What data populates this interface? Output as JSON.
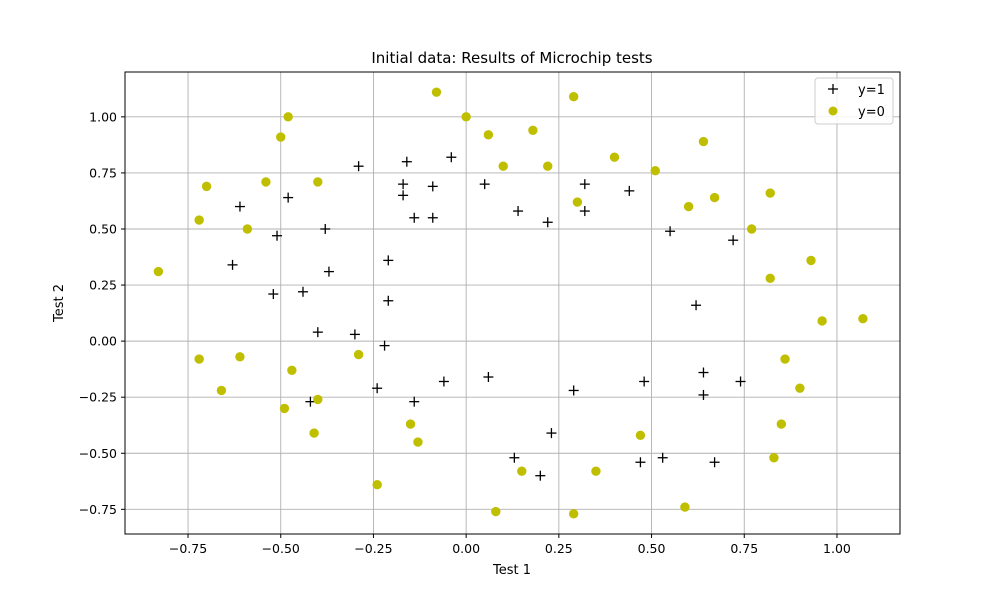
{
  "chart_data": {
    "type": "scatter",
    "title": "Initial data: Results of Microchip tests",
    "xlabel": "Test 1",
    "ylabel": "Test 2",
    "xlim": [
      -0.92,
      1.17
    ],
    "ylim": [
      -0.86,
      1.2
    ],
    "xticks": [
      -0.75,
      -0.5,
      -0.25,
      0.0,
      0.25,
      0.5,
      0.75,
      1.0
    ],
    "xtick_labels": [
      "−0.75",
      "−0.50",
      "−0.25",
      "0.00",
      "0.25",
      "0.50",
      "0.75",
      "1.00"
    ],
    "yticks": [
      -0.75,
      -0.5,
      -0.25,
      0.0,
      0.25,
      0.5,
      0.75,
      1.0
    ],
    "ytick_labels": [
      "−0.75",
      "−0.50",
      "−0.25",
      "0.00",
      "0.25",
      "0.50",
      "0.75",
      "1.00"
    ],
    "grid": true,
    "legend_position": "top-right",
    "series": [
      {
        "name": "y=1",
        "marker": "plus",
        "color": "#000000",
        "points": [
          [
            -0.61,
            0.6
          ],
          [
            -0.48,
            0.64
          ],
          [
            -0.51,
            0.47
          ],
          [
            -0.63,
            0.34
          ],
          [
            -0.52,
            0.21
          ],
          [
            -0.44,
            0.22
          ],
          [
            -0.37,
            0.31
          ],
          [
            -0.38,
            0.5
          ],
          [
            -0.29,
            0.78
          ],
          [
            -0.16,
            0.8
          ],
          [
            -0.17,
            0.7
          ],
          [
            -0.17,
            0.65
          ],
          [
            -0.14,
            0.55
          ],
          [
            -0.09,
            0.55
          ],
          [
            -0.09,
            0.69
          ],
          [
            -0.04,
            0.82
          ],
          [
            -0.21,
            0.36
          ],
          [
            -0.21,
            0.18
          ],
          [
            -0.4,
            0.04
          ],
          [
            -0.3,
            0.03
          ],
          [
            -0.22,
            -0.02
          ],
          [
            -0.24,
            -0.21
          ],
          [
            -0.06,
            -0.18
          ],
          [
            -0.42,
            -0.27
          ],
          [
            -0.14,
            -0.27
          ],
          [
            0.05,
            0.7
          ],
          [
            0.14,
            0.58
          ],
          [
            0.22,
            0.53
          ],
          [
            0.32,
            0.7
          ],
          [
            0.32,
            0.58
          ],
          [
            0.44,
            0.67
          ],
          [
            0.55,
            0.49
          ],
          [
            0.72,
            0.45
          ],
          [
            0.62,
            0.16
          ],
          [
            0.64,
            -0.14
          ],
          [
            0.74,
            -0.18
          ],
          [
            0.64,
            -0.24
          ],
          [
            0.48,
            -0.18
          ],
          [
            0.29,
            -0.22
          ],
          [
            0.06,
            -0.16
          ],
          [
            0.23,
            -0.41
          ],
          [
            0.13,
            -0.52
          ],
          [
            0.2,
            -0.6
          ],
          [
            0.47,
            -0.54
          ],
          [
            0.53,
            -0.52
          ],
          [
            0.67,
            -0.54
          ]
        ]
      },
      {
        "name": "y=0",
        "marker": "circle",
        "color": "#bfbf00",
        "points": [
          [
            -0.83,
            0.31
          ],
          [
            -0.72,
            0.54
          ],
          [
            -0.7,
            0.69
          ],
          [
            -0.59,
            0.5
          ],
          [
            -0.54,
            0.71
          ],
          [
            -0.5,
            0.91
          ],
          [
            -0.48,
            1.0
          ],
          [
            -0.4,
            0.71
          ],
          [
            -0.08,
            1.11
          ],
          [
            0.0,
            1.0
          ],
          [
            0.06,
            0.92
          ],
          [
            0.1,
            0.78
          ],
          [
            0.18,
            0.94
          ],
          [
            0.22,
            0.78
          ],
          [
            0.29,
            1.09
          ],
          [
            0.3,
            0.62
          ],
          [
            0.4,
            0.82
          ],
          [
            0.51,
            0.76
          ],
          [
            0.6,
            0.6
          ],
          [
            0.64,
            0.89
          ],
          [
            0.67,
            0.64
          ],
          [
            0.77,
            0.5
          ],
          [
            0.82,
            0.66
          ],
          [
            0.82,
            0.28
          ],
          [
            0.93,
            0.36
          ],
          [
            0.96,
            0.09
          ],
          [
            1.07,
            0.1
          ],
          [
            0.86,
            -0.08
          ],
          [
            0.9,
            -0.21
          ],
          [
            0.85,
            -0.37
          ],
          [
            0.83,
            -0.52
          ],
          [
            0.47,
            -0.42
          ],
          [
            0.59,
            -0.74
          ],
          [
            0.35,
            -0.58
          ],
          [
            0.29,
            -0.77
          ],
          [
            0.08,
            -0.76
          ],
          [
            0.15,
            -0.58
          ],
          [
            -0.13,
            -0.45
          ],
          [
            -0.15,
            -0.37
          ],
          [
            -0.24,
            -0.64
          ],
          [
            -0.29,
            -0.06
          ],
          [
            -0.4,
            -0.26
          ],
          [
            -0.41,
            -0.41
          ],
          [
            -0.49,
            -0.3
          ],
          [
            -0.47,
            -0.13
          ],
          [
            -0.61,
            -0.07
          ],
          [
            -0.66,
            -0.22
          ],
          [
            -0.72,
            -0.08
          ]
        ]
      }
    ]
  }
}
